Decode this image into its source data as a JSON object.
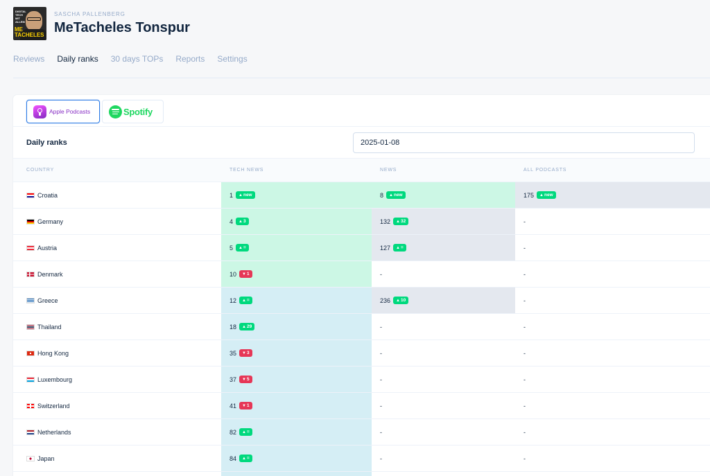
{
  "header": {
    "author": "SASCHA PALLENBERG",
    "title": "MeTacheles Tonspur",
    "cover_text_top": "DIGITAL TECH MIT ALLEM",
    "cover_text_bottom": "ME TACHELES"
  },
  "tabs": [
    {
      "label": "Reviews",
      "active": false
    },
    {
      "label": "Daily ranks",
      "active": true
    },
    {
      "label": "30 days TOPs",
      "active": false
    },
    {
      "label": "Reports",
      "active": false
    },
    {
      "label": "Settings",
      "active": false
    }
  ],
  "platforms": {
    "apple": {
      "label": "Apple Podcasts",
      "icon": "apple-podcasts-icon",
      "color": "#872ec4",
      "selected": true
    },
    "spotify": {
      "label": "Spotify",
      "icon": "spotify-icon",
      "color": "#1ed760",
      "selected": false
    }
  },
  "daily_ranks": {
    "label": "Daily ranks",
    "date": "2025-01-08"
  },
  "table": {
    "headers": {
      "country": "COUNTRY",
      "tech": "TECH NEWS",
      "news": "NEWS",
      "all": "ALL PODCASTS"
    },
    "rows": [
      {
        "country": "Croatia",
        "flag": "hr",
        "tech": {
          "rank": "1",
          "dir": "up",
          "delta": "new",
          "bg": "green"
        },
        "news": {
          "rank": "8",
          "dir": "up",
          "delta": "new",
          "bg": "green"
        },
        "all": {
          "rank": "175",
          "dir": "up",
          "delta": "new",
          "bg": "grey"
        }
      },
      {
        "country": "Germany",
        "flag": "de",
        "tech": {
          "rank": "4",
          "dir": "up",
          "delta": "3",
          "bg": "green"
        },
        "news": {
          "rank": "132",
          "dir": "up",
          "delta": "32",
          "bg": "grey"
        },
        "all": {
          "rank": "-",
          "bg": ""
        }
      },
      {
        "country": "Austria",
        "flag": "at",
        "tech": {
          "rank": "5",
          "dir": "up",
          "delta": "=",
          "bg": "green"
        },
        "news": {
          "rank": "127",
          "dir": "up",
          "delta": "=",
          "bg": "grey"
        },
        "all": {
          "rank": "-",
          "bg": ""
        }
      },
      {
        "country": "Denmark",
        "flag": "dk",
        "tech": {
          "rank": "10",
          "dir": "down",
          "delta": "1",
          "bg": "green"
        },
        "news": {
          "rank": "-",
          "bg": ""
        },
        "all": {
          "rank": "-",
          "bg": ""
        }
      },
      {
        "country": "Greece",
        "flag": "gr",
        "tech": {
          "rank": "12",
          "dir": "up",
          "delta": "=",
          "bg": "blue"
        },
        "news": {
          "rank": "236",
          "dir": "up",
          "delta": "10",
          "bg": "grey"
        },
        "all": {
          "rank": "-",
          "bg": ""
        }
      },
      {
        "country": "Thailand",
        "flag": "th",
        "tech": {
          "rank": "18",
          "dir": "up",
          "delta": "29",
          "bg": "blue"
        },
        "news": {
          "rank": "-",
          "bg": ""
        },
        "all": {
          "rank": "-",
          "bg": ""
        }
      },
      {
        "country": "Hong Kong",
        "flag": "hk",
        "tech": {
          "rank": "35",
          "dir": "down",
          "delta": "3",
          "bg": "blue"
        },
        "news": {
          "rank": "-",
          "bg": ""
        },
        "all": {
          "rank": "-",
          "bg": ""
        }
      },
      {
        "country": "Luxembourg",
        "flag": "lu",
        "tech": {
          "rank": "37",
          "dir": "down",
          "delta": "5",
          "bg": "blue"
        },
        "news": {
          "rank": "-",
          "bg": ""
        },
        "all": {
          "rank": "-",
          "bg": ""
        }
      },
      {
        "country": "Switzerland",
        "flag": "ch",
        "tech": {
          "rank": "41",
          "dir": "down",
          "delta": "1",
          "bg": "blue"
        },
        "news": {
          "rank": "-",
          "bg": ""
        },
        "all": {
          "rank": "-",
          "bg": ""
        }
      },
      {
        "country": "Netherlands",
        "flag": "nl",
        "tech": {
          "rank": "82",
          "dir": "up",
          "delta": "=",
          "bg": "blue"
        },
        "news": {
          "rank": "-",
          "bg": ""
        },
        "all": {
          "rank": "-",
          "bg": ""
        }
      },
      {
        "country": "Japan",
        "flag": "jp",
        "tech": {
          "rank": "84",
          "dir": "up",
          "delta": "=",
          "bg": "blue"
        },
        "news": {
          "rank": "-",
          "bg": ""
        },
        "all": {
          "rank": "-",
          "bg": ""
        }
      },
      {
        "country": "",
        "flag": "",
        "tech": {
          "rank": "",
          "bg": "blue"
        },
        "news": {
          "rank": "",
          "bg": ""
        },
        "all": {
          "rank": "",
          "bg": ""
        }
      }
    ]
  },
  "colors": {
    "accent": "#2c7be5",
    "up": "#00d97e",
    "down": "#e63757",
    "cell_green": "#ccf7e5",
    "cell_blue": "#d5eef5",
    "cell_grey": "#e4e8ef"
  }
}
